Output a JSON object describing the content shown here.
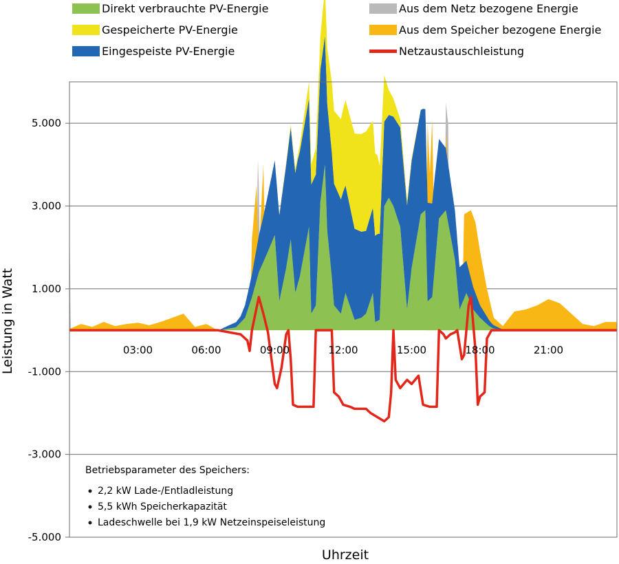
{
  "chart_data": {
    "type": "area",
    "xlabel": "Uhrzeit",
    "ylabel": "Leistung in Watt",
    "x_unit": "hour of day",
    "xlim": [
      0,
      24
    ],
    "ylim": [
      -5000,
      6000
    ],
    "grid": true,
    "legend_position": "top",
    "x_tick_labels": [
      "03:00",
      "06:00",
      "09:00",
      "12:00",
      "15:00",
      "18:00",
      "21:00"
    ],
    "x_tick_values": [
      3,
      6,
      9,
      12,
      15,
      18,
      21
    ],
    "y_tick_labels": [
      "5.000",
      "3.000",
      "1.000",
      "-1.000",
      "-3.000",
      "-5.000"
    ],
    "y_tick_values": [
      5000,
      3000,
      1000,
      -1000,
      -3000,
      -5000
    ],
    "stack_order": [
      "Direkt verbrauchte PV-Energie",
      "Eingespeiste PV-Energie",
      "Gespeicherte PV-Energie"
    ],
    "series": [
      {
        "name": "Direkt verbrauchte PV-Energie",
        "color": "#8dc152",
        "style": "stacked-area",
        "points": [
          [
            6.6,
            0
          ],
          [
            7.0,
            40
          ],
          [
            7.3,
            70
          ],
          [
            7.7,
            300
          ],
          [
            8.0,
            800
          ],
          [
            8.3,
            1400
          ],
          [
            8.7,
            1900
          ],
          [
            9.0,
            2300
          ],
          [
            9.2,
            700
          ],
          [
            9.5,
            1500
          ],
          [
            9.7,
            2200
          ],
          [
            9.9,
            900
          ],
          [
            10.1,
            1300
          ],
          [
            10.5,
            2500
          ],
          [
            10.6,
            400
          ],
          [
            10.8,
            600
          ],
          [
            11.0,
            3100
          ],
          [
            11.2,
            4000
          ],
          [
            11.3,
            2400
          ],
          [
            11.5,
            1300
          ],
          [
            11.6,
            600
          ],
          [
            11.9,
            400
          ],
          [
            12.1,
            900
          ],
          [
            12.5,
            250
          ],
          [
            12.8,
            300
          ],
          [
            13.0,
            400
          ],
          [
            13.3,
            900
          ],
          [
            13.4,
            200
          ],
          [
            13.6,
            250
          ],
          [
            13.8,
            3000
          ],
          [
            14.0,
            3200
          ],
          [
            14.2,
            3000
          ],
          [
            14.5,
            2500
          ],
          [
            14.8,
            500
          ],
          [
            15.0,
            1500
          ],
          [
            15.4,
            2800
          ],
          [
            15.6,
            2900
          ],
          [
            15.7,
            700
          ],
          [
            15.9,
            800
          ],
          [
            16.2,
            2700
          ],
          [
            16.5,
            2900
          ],
          [
            16.9,
            1700
          ],
          [
            17.1,
            500
          ],
          [
            17.4,
            900
          ],
          [
            17.7,
            500
          ],
          [
            18.0,
            300
          ],
          [
            18.4,
            100
          ],
          [
            18.6,
            40
          ],
          [
            19.2,
            0
          ]
        ]
      },
      {
        "name": "Eingespeiste PV-Energie",
        "color": "#2366b3",
        "style": "stacked-area",
        "points": [
          [
            6.5,
            0
          ],
          [
            7.0,
            80
          ],
          [
            7.5,
            150
          ],
          [
            8.0,
            550
          ],
          [
            8.5,
            1100
          ],
          [
            9.0,
            1800
          ],
          [
            9.5,
            2500
          ],
          [
            10.0,
            3000
          ],
          [
            10.5,
            3100
          ],
          [
            11.0,
            3200
          ],
          [
            11.5,
            3000
          ],
          [
            12.0,
            2700
          ],
          [
            12.5,
            2200
          ],
          [
            13.0,
            2000
          ],
          [
            13.5,
            2100
          ],
          [
            14.0,
            2000
          ],
          [
            14.5,
            2400
          ],
          [
            15.0,
            2600
          ],
          [
            15.5,
            2500
          ],
          [
            16.0,
            2200
          ],
          [
            16.5,
            1500
          ],
          [
            17.0,
            1100
          ],
          [
            17.5,
            700
          ],
          [
            18.0,
            300
          ],
          [
            18.5,
            100
          ],
          [
            19.0,
            0
          ]
        ]
      },
      {
        "name": "Gespeicherte PV-Energie",
        "color": "#f1e31b",
        "style": "stacked-area",
        "points": [
          [
            9.0,
            0
          ],
          [
            9.5,
            50
          ],
          [
            10.0,
            100
          ],
          [
            10.5,
            400
          ],
          [
            11.0,
            800
          ],
          [
            11.5,
            1700
          ],
          [
            12.0,
            2000
          ],
          [
            12.5,
            2300
          ],
          [
            13.0,
            2400
          ],
          [
            13.5,
            1900
          ],
          [
            14.0,
            600
          ],
          [
            14.5,
            200
          ],
          [
            15.0,
            50
          ],
          [
            15.5,
            0
          ]
        ]
      },
      {
        "name": "Aus dem Speicher bezogene Energie",
        "color": "#f8b714",
        "style": "area",
        "points": [
          [
            0,
            30
          ],
          [
            0.5,
            150
          ],
          [
            1.0,
            80
          ],
          [
            1.5,
            200
          ],
          [
            2.0,
            100
          ],
          [
            2.5,
            150
          ],
          [
            3.0,
            180
          ],
          [
            3.5,
            120
          ],
          [
            4.0,
            200
          ],
          [
            4.5,
            300
          ],
          [
            5.0,
            400
          ],
          [
            5.5,
            80
          ],
          [
            6.0,
            150
          ],
          [
            6.5,
            0
          ],
          [
            7.9,
            0
          ],
          [
            8.0,
            2200
          ],
          [
            8.2,
            3500
          ],
          [
            8.3,
            1800
          ],
          [
            8.5,
            4000
          ],
          [
            8.6,
            1500
          ],
          [
            8.8,
            0
          ],
          [
            11.4,
            0
          ],
          [
            11.5,
            4800
          ],
          [
            11.7,
            5000
          ],
          [
            11.8,
            4900
          ],
          [
            11.9,
            0
          ],
          [
            15.6,
            0
          ],
          [
            15.7,
            5000
          ],
          [
            15.8,
            3800
          ],
          [
            15.9,
            5100
          ],
          [
            16.0,
            2000
          ],
          [
            16.1,
            0
          ],
          [
            16.4,
            0
          ],
          [
            16.5,
            4800
          ],
          [
            16.6,
            3800
          ],
          [
            16.7,
            0
          ],
          [
            17.2,
            0
          ],
          [
            17.3,
            2800
          ],
          [
            17.6,
            2900
          ],
          [
            17.8,
            2600
          ],
          [
            18.0,
            1900
          ],
          [
            18.3,
            1000
          ],
          [
            18.6,
            300
          ],
          [
            19.0,
            100
          ],
          [
            19.5,
            450
          ],
          [
            20.0,
            500
          ],
          [
            20.5,
            600
          ],
          [
            21.0,
            750
          ],
          [
            21.5,
            650
          ],
          [
            22.0,
            400
          ],
          [
            22.5,
            150
          ],
          [
            23.0,
            100
          ],
          [
            23.5,
            200
          ],
          [
            24.0,
            200
          ]
        ]
      },
      {
        "name": "Aus dem Netz bezogene Energie",
        "color": "#b9b9bb",
        "style": "area",
        "points": [
          [
            0,
            3500
          ],
          [
            0.05,
            0
          ],
          [
            8.2,
            0
          ],
          [
            8.25,
            4300
          ],
          [
            8.3,
            3500
          ],
          [
            8.4,
            0
          ],
          [
            16.4,
            0
          ],
          [
            16.5,
            5500
          ],
          [
            16.6,
            5000
          ],
          [
            16.7,
            0
          ]
        ]
      },
      {
        "name": "Netzaustauschleistung",
        "color": "#e2261a",
        "style": "line",
        "points": [
          [
            0,
            0
          ],
          [
            6.5,
            0
          ],
          [
            7.0,
            -50
          ],
          [
            7.5,
            -100
          ],
          [
            7.8,
            -250
          ],
          [
            7.9,
            -500
          ],
          [
            8.0,
            0
          ],
          [
            8.3,
            800
          ],
          [
            8.5,
            400
          ],
          [
            8.7,
            -50
          ],
          [
            9.0,
            -1300
          ],
          [
            9.1,
            -1400
          ],
          [
            9.3,
            -900
          ],
          [
            9.5,
            -100
          ],
          [
            9.6,
            0
          ],
          [
            9.7,
            -700
          ],
          [
            9.8,
            -1800
          ],
          [
            10.0,
            -1850
          ],
          [
            10.7,
            -1850
          ],
          [
            10.8,
            0
          ],
          [
            11.5,
            0
          ],
          [
            11.6,
            -1500
          ],
          [
            11.8,
            -1600
          ],
          [
            12.0,
            -1800
          ],
          [
            12.3,
            -1850
          ],
          [
            12.5,
            -1900
          ],
          [
            13.0,
            -1900
          ],
          [
            13.2,
            -2000
          ],
          [
            13.5,
            -2100
          ],
          [
            13.8,
            -2200
          ],
          [
            14.0,
            -2100
          ],
          [
            14.1,
            -1500
          ],
          [
            14.2,
            0
          ],
          [
            14.3,
            -1200
          ],
          [
            14.5,
            -1400
          ],
          [
            14.8,
            -1200
          ],
          [
            15.0,
            -1300
          ],
          [
            15.3,
            -1100
          ],
          [
            15.5,
            -1800
          ],
          [
            15.8,
            -1850
          ],
          [
            16.1,
            -1850
          ],
          [
            16.2,
            0
          ],
          [
            16.4,
            -100
          ],
          [
            16.5,
            -200
          ],
          [
            16.7,
            -100
          ],
          [
            16.9,
            -50
          ],
          [
            17.0,
            0
          ],
          [
            17.2,
            -700
          ],
          [
            17.3,
            -600
          ],
          [
            17.5,
            600
          ],
          [
            17.6,
            800
          ],
          [
            17.8,
            -500
          ],
          [
            17.9,
            -1800
          ],
          [
            18.0,
            -1600
          ],
          [
            18.2,
            -1500
          ],
          [
            18.3,
            -200
          ],
          [
            18.5,
            0
          ],
          [
            24,
            0
          ]
        ]
      }
    ],
    "annotation": {
      "heading": "Betriebsparameter des Speichers:",
      "items": [
        "2,2 kW Lade-/Entladleistung",
        "5,5 kWh Speicherkapazität",
        "Ladeschwelle bei 1,9 kW Netzeinspeiseleistung"
      ]
    }
  }
}
